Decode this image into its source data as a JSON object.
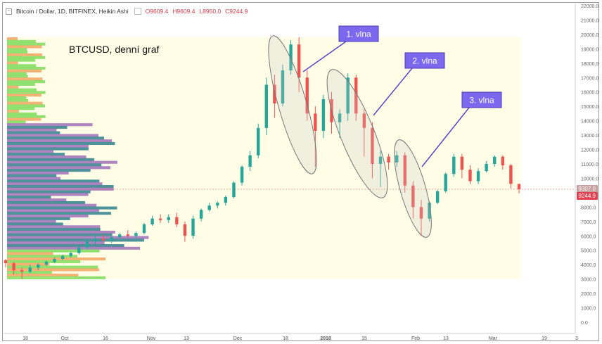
{
  "legend": {
    "symbol": "Bitcoin / Dollar, 1D, BITFINEX, Heikin Ashi",
    "open": "O9609.4",
    "high": "H9609.4",
    "low": "L8950.0",
    "close": "C9244.9"
  },
  "annotation_title": "BTCUSD, denní graf",
  "callouts": [
    "1. vlna",
    "2. vlna",
    "3. vlna"
  ],
  "price_tags": {
    "last_gray": "9307.0",
    "last_red": "9244.9"
  },
  "colors": {
    "up": "#26a69a",
    "down": "#ef5350",
    "callout": "#7b68ee",
    "background_zone": "#fffde6",
    "vp_green": "#7ddc5a",
    "vp_orange": "#f4a460",
    "vp_purple": "#a070b8",
    "vp_teal": "#2f7f8c"
  },
  "chart_data": {
    "type": "candlestick",
    "style": "Heikin Ashi",
    "y_ticks": [
      "22000.0",
      "21000.0",
      "20000.0",
      "19000.0",
      "18000.0",
      "17000.0",
      "16000.0",
      "15000.0",
      "14000.0",
      "13000.0",
      "12000.0",
      "11000.0",
      "10000.0",
      "9000.0",
      "8000.0",
      "7000.0",
      "6000.0",
      "5000.0",
      "4000.0",
      "3000.0",
      "2000.0",
      "1000.0",
      "0.0"
    ],
    "x_ticks": [
      "18",
      "Oct",
      "16",
      "Nov",
      "13",
      "Dec",
      "18",
      "2018",
      "15",
      "Feb",
      "13",
      "Mar",
      "19",
      "3"
    ],
    "ylim": [
      0,
      22000
    ],
    "series": [
      {
        "t": 0,
        "o": 4300,
        "h": 4400,
        "l": 3800,
        "c": 4100
      },
      {
        "t": 2,
        "o": 4100,
        "h": 4200,
        "l": 3300,
        "c": 3600
      },
      {
        "t": 4,
        "o": 3600,
        "h": 3800,
        "l": 3000,
        "c": 3500
      },
      {
        "t": 6,
        "o": 3500,
        "h": 4000,
        "l": 3400,
        "c": 3800
      },
      {
        "t": 8,
        "o": 3800,
        "h": 4100,
        "l": 3600,
        "c": 4000
      },
      {
        "t": 10,
        "o": 4000,
        "h": 4300,
        "l": 3900,
        "c": 4200
      },
      {
        "t": 12,
        "o": 4200,
        "h": 4500,
        "l": 4100,
        "c": 4400
      },
      {
        "t": 14,
        "o": 4400,
        "h": 4700,
        "l": 4300,
        "c": 4600
      },
      {
        "t": 16,
        "o": 4600,
        "h": 4900,
        "l": 4500,
        "c": 4800
      },
      {
        "t": 18,
        "o": 4800,
        "h": 5300,
        "l": 4700,
        "c": 5200
      },
      {
        "t": 20,
        "o": 5200,
        "h": 5700,
        "l": 5100,
        "c": 5600
      },
      {
        "t": 22,
        "o": 5600,
        "h": 6000,
        "l": 5400,
        "c": 5800
      },
      {
        "t": 24,
        "o": 5800,
        "h": 6100,
        "l": 5600,
        "c": 5700
      },
      {
        "t": 26,
        "o": 5700,
        "h": 6000,
        "l": 5500,
        "c": 5900
      },
      {
        "t": 28,
        "o": 5900,
        "h": 6200,
        "l": 5800,
        "c": 6100
      },
      {
        "t": 30,
        "o": 6100,
        "h": 6400,
        "l": 5900,
        "c": 6000
      },
      {
        "t": 32,
        "o": 6000,
        "h": 6300,
        "l": 5800,
        "c": 6200
      },
      {
        "t": 34,
        "o": 6200,
        "h": 6900,
        "l": 6100,
        "c": 6800
      },
      {
        "t": 36,
        "o": 6800,
        "h": 7400,
        "l": 6700,
        "c": 7200
      },
      {
        "t": 38,
        "o": 7200,
        "h": 7500,
        "l": 6900,
        "c": 7100
      },
      {
        "t": 40,
        "o": 7100,
        "h": 7500,
        "l": 6900,
        "c": 7300
      },
      {
        "t": 42,
        "o": 7300,
        "h": 7600,
        "l": 6600,
        "c": 6800
      },
      {
        "t": 44,
        "o": 6800,
        "h": 7000,
        "l": 5600,
        "c": 6000
      },
      {
        "t": 46,
        "o": 6000,
        "h": 7400,
        "l": 5800,
        "c": 7200
      },
      {
        "t": 48,
        "o": 7200,
        "h": 7900,
        "l": 7000,
        "c": 7800
      },
      {
        "t": 50,
        "o": 7800,
        "h": 8300,
        "l": 7700,
        "c": 8100
      },
      {
        "t": 52,
        "o": 8100,
        "h": 8400,
        "l": 7900,
        "c": 8300
      },
      {
        "t": 54,
        "o": 8300,
        "h": 8800,
        "l": 8100,
        "c": 8700
      },
      {
        "t": 56,
        "o": 8700,
        "h": 9800,
        "l": 8600,
        "c": 9700
      },
      {
        "t": 58,
        "o": 9700,
        "h": 10900,
        "l": 9500,
        "c": 10800
      },
      {
        "t": 60,
        "o": 10800,
        "h": 11900,
        "l": 10500,
        "c": 11600
      },
      {
        "t": 62,
        "o": 11600,
        "h": 13800,
        "l": 11400,
        "c": 13500
      },
      {
        "t": 64,
        "o": 13500,
        "h": 17000,
        "l": 13000,
        "c": 16500
      },
      {
        "t": 66,
        "o": 16500,
        "h": 17200,
        "l": 14200,
        "c": 15200
      },
      {
        "t": 68,
        "o": 15200,
        "h": 17900,
        "l": 15000,
        "c": 17500
      },
      {
        "t": 70,
        "o": 17500,
        "h": 19600,
        "l": 17200,
        "c": 19300
      },
      {
        "t": 72,
        "o": 19300,
        "h": 19800,
        "l": 16000,
        "c": 17000
      },
      {
        "t": 74,
        "o": 17000,
        "h": 17500,
        "l": 14000,
        "c": 14500
      },
      {
        "t": 76,
        "o": 14500,
        "h": 15000,
        "l": 10800,
        "c": 13300
      },
      {
        "t": 78,
        "o": 13300,
        "h": 15800,
        "l": 12800,
        "c": 15500
      },
      {
        "t": 80,
        "o": 15500,
        "h": 16000,
        "l": 13100,
        "c": 13900
      },
      {
        "t": 82,
        "o": 13900,
        "h": 14800,
        "l": 12800,
        "c": 14500
      },
      {
        "t": 84,
        "o": 14500,
        "h": 17300,
        "l": 14000,
        "c": 17000
      },
      {
        "t": 86,
        "o": 17000,
        "h": 17200,
        "l": 14000,
        "c": 14500
      },
      {
        "t": 88,
        "o": 14500,
        "h": 14800,
        "l": 11500,
        "c": 13500
      },
      {
        "t": 90,
        "o": 13500,
        "h": 13900,
        "l": 10000,
        "c": 11000
      },
      {
        "t": 92,
        "o": 11000,
        "h": 11900,
        "l": 9400,
        "c": 11500
      },
      {
        "t": 94,
        "o": 11500,
        "h": 11700,
        "l": 10600,
        "c": 11100
      },
      {
        "t": 96,
        "o": 11100,
        "h": 11900,
        "l": 10800,
        "c": 11600
      },
      {
        "t": 98,
        "o": 11600,
        "h": 11800,
        "l": 9000,
        "c": 9500
      },
      {
        "t": 100,
        "o": 9500,
        "h": 9800,
        "l": 7200,
        "c": 8000
      },
      {
        "t": 102,
        "o": 8000,
        "h": 8500,
        "l": 6000,
        "c": 7200
      },
      {
        "t": 104,
        "o": 7200,
        "h": 8400,
        "l": 7000,
        "c": 8300
      },
      {
        "t": 106,
        "o": 8300,
        "h": 9200,
        "l": 8200,
        "c": 9100
      },
      {
        "t": 108,
        "o": 9100,
        "h": 10400,
        "l": 9000,
        "c": 10300
      },
      {
        "t": 110,
        "o": 10300,
        "h": 11700,
        "l": 10100,
        "c": 11500
      },
      {
        "t": 112,
        "o": 11500,
        "h": 11700,
        "l": 10000,
        "c": 10600
      },
      {
        "t": 114,
        "o": 10600,
        "h": 10900,
        "l": 9600,
        "c": 9800
      },
      {
        "t": 116,
        "o": 9800,
        "h": 10700,
        "l": 9600,
        "c": 10500
      },
      {
        "t": 118,
        "o": 10500,
        "h": 11200,
        "l": 10400,
        "c": 11000
      },
      {
        "t": 120,
        "o": 11000,
        "h": 11600,
        "l": 10800,
        "c": 11500
      },
      {
        "t": 122,
        "o": 11500,
        "h": 11600,
        "l": 10600,
        "c": 10900
      },
      {
        "t": 124,
        "o": 10900,
        "h": 11000,
        "l": 9300,
        "c": 9609
      },
      {
        "t": 126,
        "o": 9609,
        "h": 9609,
        "l": 8950,
        "c": 9245
      }
    ]
  }
}
